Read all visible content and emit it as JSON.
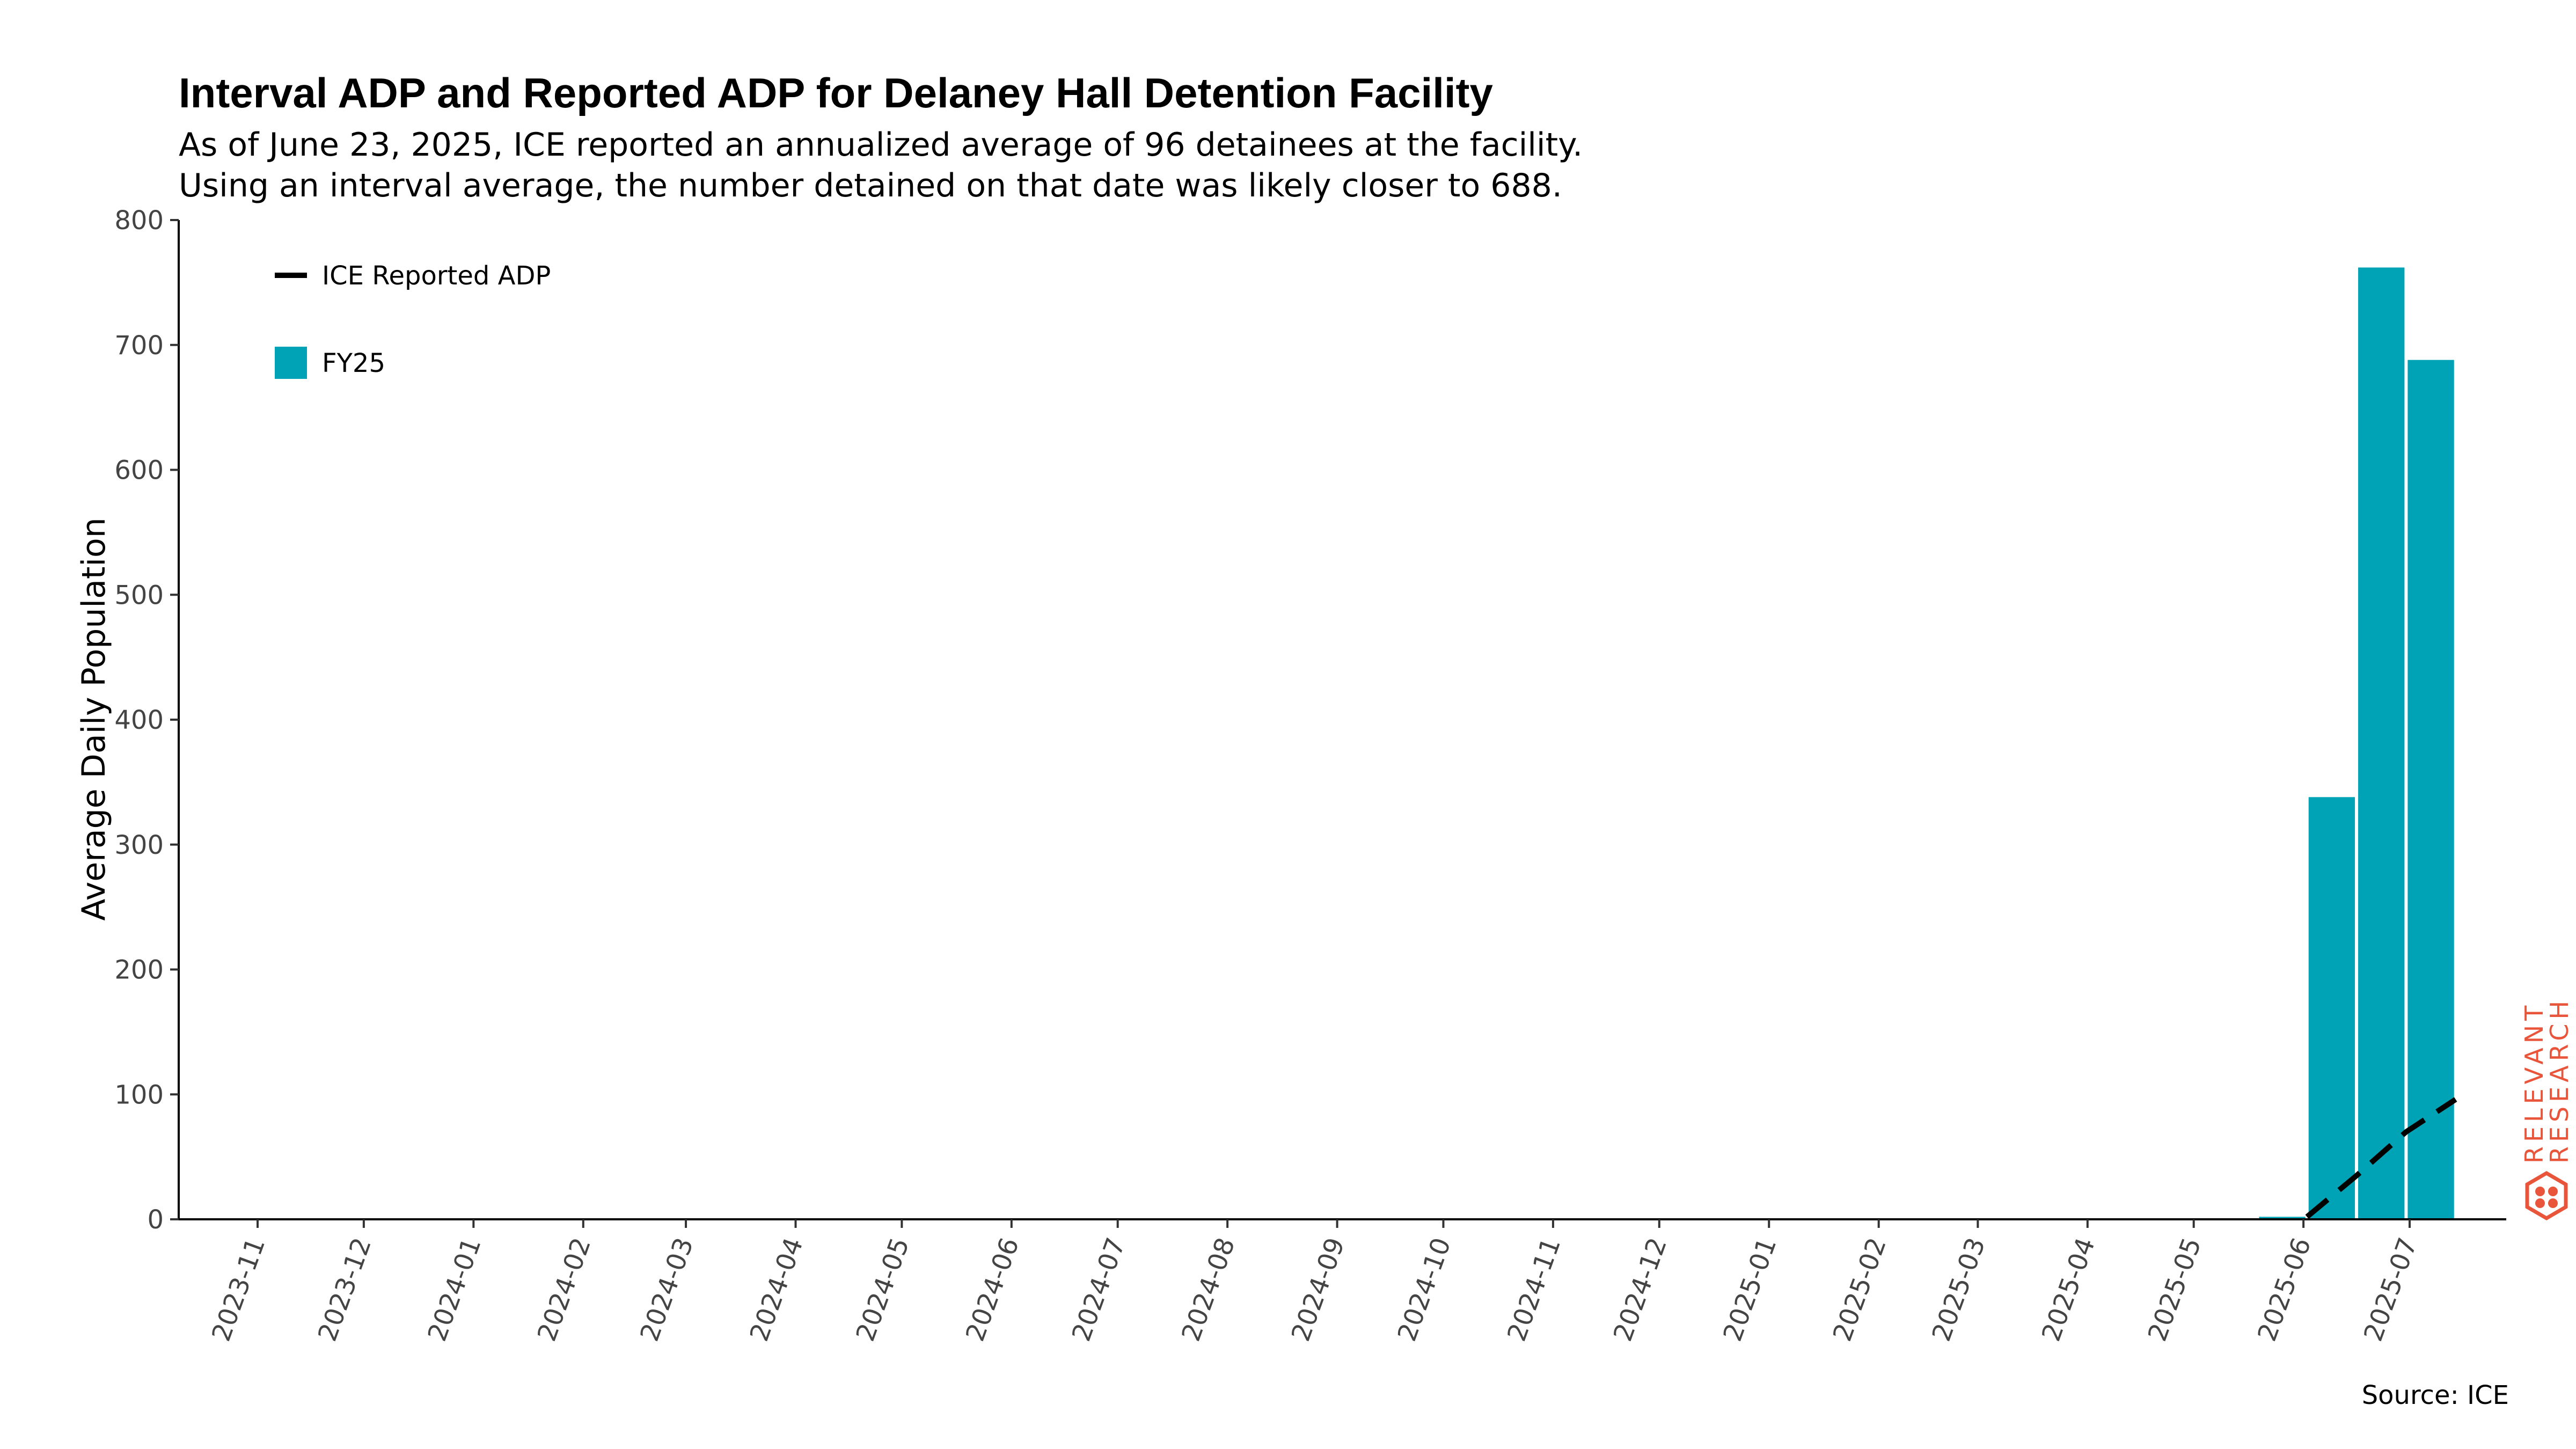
{
  "chart_data": {
    "type": "bar",
    "title": "Interval ADP and Reported ADP for Delaney Hall Detention Facility",
    "subtitle": [
      "As of June 23, 2025, ICE reported an annualized average of 96 detainees at the facility.",
      "Using an interval average, the number detained on that date was likely closer to 688."
    ],
    "ylabel": "Average Daily Population",
    "xlabel": "",
    "ylim": [
      0,
      800
    ],
    "yticks": [
      0,
      100,
      200,
      300,
      400,
      500,
      600,
      700,
      800
    ],
    "xticks": [
      "2023-11",
      "2023-12",
      "2024-01",
      "2024-02",
      "2024-03",
      "2024-04",
      "2024-05",
      "2024-06",
      "2024-07",
      "2024-08",
      "2024-09",
      "2024-10",
      "2024-11",
      "2024-12",
      "2025-01",
      "2025-02",
      "2025-03",
      "2025-04",
      "2025-05",
      "2025-06",
      "2025-07"
    ],
    "bars": {
      "name": "FY25",
      "color": "#00a3b5",
      "points": [
        {
          "start": "2025-05-19",
          "end": "2025-06-02",
          "value": 2
        },
        {
          "start": "2025-06-02",
          "end": "2025-06-16",
          "value": 338
        },
        {
          "start": "2025-06-16",
          "end": "2025-06-30",
          "value": 762
        },
        {
          "start": "2025-06-30",
          "end": "2025-07-14",
          "value": 688
        }
      ]
    },
    "line": {
      "name": "ICE Reported ADP",
      "color": "#000000",
      "style": "dashed",
      "points": [
        {
          "x": "2025-06-02",
          "y": 2
        },
        {
          "x": "2025-06-16",
          "y": 35
        },
        {
          "x": "2025-06-30",
          "y": 70
        },
        {
          "x": "2025-07-14",
          "y": 96
        }
      ]
    },
    "legend": [
      {
        "label": "ICE Reported ADP",
        "type": "line",
        "color": "#000000"
      },
      {
        "label": "FY25",
        "type": "bar",
        "color": "#00a3b5"
      }
    ],
    "legend_position": "top-left",
    "grid": false
  },
  "source": "Source: ICE",
  "brand": {
    "line1": "RELEVANT",
    "line2": "RESEARCH",
    "color": "#e8553a",
    "icon": "hexagon-logo-icon"
  }
}
